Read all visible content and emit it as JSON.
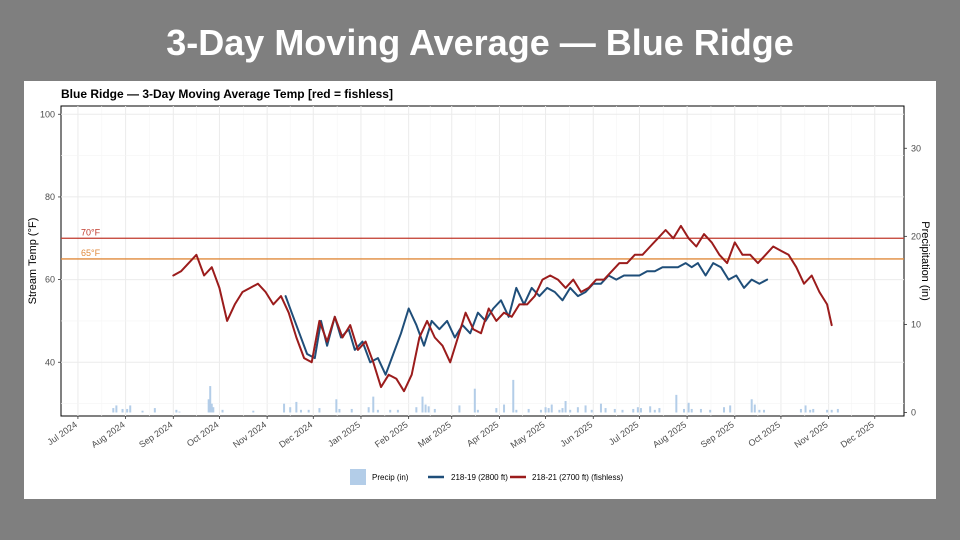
{
  "slide": {
    "title": "3-Day Moving Average —  Blue Ridge"
  },
  "chart_data": {
    "type": "line",
    "title": "Blue Ridge — 3-Day Moving Average Temp   [red = fishless]",
    "ylabel": "Stream Temp (°F)",
    "y2label": "Precipitation (in)",
    "xlim": [
      "2024-06-20",
      "2025-12-20"
    ],
    "ylim": [
      27,
      102
    ],
    "y2lim": [
      -0.4,
      34.8
    ],
    "y_ticks": [
      40,
      60,
      80,
      100
    ],
    "y2_ticks": [
      0,
      10,
      20,
      30
    ],
    "x_ticks": [
      {
        "date": "2024-07-01",
        "label": "Jul 2024"
      },
      {
        "date": "2024-08-01",
        "label": "Aug 2024"
      },
      {
        "date": "2024-09-01",
        "label": "Sep 2024"
      },
      {
        "date": "2024-10-01",
        "label": "Oct 2024"
      },
      {
        "date": "2024-11-01",
        "label": "Nov 2024"
      },
      {
        "date": "2024-12-01",
        "label": "Dec 2024"
      },
      {
        "date": "2025-01-01",
        "label": "Jan 2025"
      },
      {
        "date": "2025-02-01",
        "label": "Feb 2025"
      },
      {
        "date": "2025-03-01",
        "label": "Mar 2025"
      },
      {
        "date": "2025-04-01",
        "label": "Apr 2025"
      },
      {
        "date": "2025-05-01",
        "label": "May 2025"
      },
      {
        "date": "2025-06-01",
        "label": "Jun 2025"
      },
      {
        "date": "2025-07-01",
        "label": "Jul 2025"
      },
      {
        "date": "2025-08-01",
        "label": "Aug 2025"
      },
      {
        "date": "2025-09-01",
        "label": "Sep 2025"
      },
      {
        "date": "2025-10-01",
        "label": "Oct 2025"
      },
      {
        "date": "2025-11-01",
        "label": "Nov 2025"
      },
      {
        "date": "2025-12-01",
        "label": "Dec 2025"
      }
    ],
    "grid": true,
    "legend_position": "bottom",
    "reference_lines": [
      {
        "label": "70°F",
        "value": 70,
        "color": "#c0392b"
      },
      {
        "label": "65°F",
        "value": 65,
        "color": "#e08a3c"
      }
    ],
    "precip": {
      "name": "Precip (in)",
      "color": "#b3cde8",
      "x": [
        "2024-07-24",
        "2024-07-26",
        "2024-07-30",
        "2024-08-02",
        "2024-08-04",
        "2024-08-12",
        "2024-08-20",
        "2024-09-03",
        "2024-09-05",
        "2024-09-24",
        "2024-09-25",
        "2024-09-26",
        "2024-09-27",
        "2024-10-03",
        "2024-10-23",
        "2024-11-12",
        "2024-11-16",
        "2024-11-20",
        "2024-11-23",
        "2024-11-28",
        "2024-12-05",
        "2024-12-16",
        "2024-12-18",
        "2024-12-26",
        "2025-01-06",
        "2025-01-09",
        "2025-01-12",
        "2025-01-20",
        "2025-01-25",
        "2025-02-06",
        "2025-02-10",
        "2025-02-12",
        "2025-02-14",
        "2025-02-18",
        "2025-03-06",
        "2025-03-16",
        "2025-03-18",
        "2025-03-30",
        "2025-04-04",
        "2025-04-10",
        "2025-04-12",
        "2025-04-20",
        "2025-04-28",
        "2025-05-01",
        "2025-05-03",
        "2025-05-05",
        "2025-05-10",
        "2025-05-12",
        "2025-05-14",
        "2025-05-17",
        "2025-05-22",
        "2025-05-27",
        "2025-05-31",
        "2025-06-06",
        "2025-06-09",
        "2025-06-15",
        "2025-06-20",
        "2025-06-27",
        "2025-06-30",
        "2025-07-02",
        "2025-07-08",
        "2025-07-11",
        "2025-07-14",
        "2025-07-25",
        "2025-07-30",
        "2025-08-02",
        "2025-08-04",
        "2025-08-10",
        "2025-08-16",
        "2025-08-25",
        "2025-08-29",
        "2025-09-12",
        "2025-09-14",
        "2025-09-17",
        "2025-09-20",
        "2025-10-14",
        "2025-10-17",
        "2025-10-20",
        "2025-10-22",
        "2025-10-31",
        "2025-11-03",
        "2025-11-07"
      ],
      "values": [
        0.5,
        0.8,
        0.4,
        0.4,
        0.8,
        0.2,
        0.5,
        0.3,
        0.1,
        1.5,
        3.0,
        1.0,
        0.6,
        0.3,
        0.2,
        1.0,
        0.6,
        1.2,
        0.3,
        0.3,
        0.5,
        1.5,
        0.4,
        0.4,
        0.6,
        1.8,
        0.3,
        0.3,
        0.3,
        0.6,
        1.8,
        0.9,
        0.7,
        0.4,
        0.8,
        2.7,
        0.3,
        0.5,
        0.9,
        3.7,
        0.3,
        0.4,
        0.3,
        0.6,
        0.5,
        0.9,
        0.3,
        0.5,
        1.3,
        0.3,
        0.6,
        0.8,
        0.3,
        1.0,
        0.5,
        0.4,
        0.3,
        0.4,
        0.6,
        0.5,
        0.7,
        0.3,
        0.5,
        2.0,
        0.4,
        1.1,
        0.4,
        0.4,
        0.3,
        0.6,
        0.8,
        1.5,
        0.9,
        0.3,
        0.3,
        0.4,
        0.8,
        0.3,
        0.4,
        0.3,
        0.3,
        0.4
      ]
    },
    "series": [
      {
        "name": "218-19 (2800 ft)",
        "color": "#1f4e79",
        "x": [
          "2024-11-13",
          "2024-11-17",
          "2024-11-22",
          "2024-11-27",
          "2024-12-02",
          "2024-12-06",
          "2024-12-10",
          "2024-12-15",
          "2024-12-19",
          "2024-12-24",
          "2024-12-28",
          "2025-01-02",
          "2025-01-07",
          "2025-01-12",
          "2025-01-17",
          "2025-01-22",
          "2025-01-27",
          "2025-02-01",
          "2025-02-06",
          "2025-02-11",
          "2025-02-16",
          "2025-02-21",
          "2025-02-26",
          "2025-03-03",
          "2025-03-08",
          "2025-03-13",
          "2025-03-18",
          "2025-03-23",
          "2025-03-28",
          "2025-04-02",
          "2025-04-07",
          "2025-04-12",
          "2025-04-17",
          "2025-04-22",
          "2025-04-27",
          "2025-05-02",
          "2025-05-07",
          "2025-05-12",
          "2025-05-17",
          "2025-05-22",
          "2025-05-27",
          "2025-06-01",
          "2025-06-06",
          "2025-06-11",
          "2025-06-16",
          "2025-06-21",
          "2025-06-26",
          "2025-07-01",
          "2025-07-06",
          "2025-07-11",
          "2025-07-16",
          "2025-07-21",
          "2025-07-26",
          "2025-07-31",
          "2025-08-04",
          "2025-08-08",
          "2025-08-13",
          "2025-08-18",
          "2025-08-23",
          "2025-08-28",
          "2025-09-02",
          "2025-09-07",
          "2025-09-12",
          "2025-09-17",
          "2025-09-22"
        ],
        "values": [
          56,
          52,
          47,
          42,
          41,
          50,
          44,
          51,
          46,
          48,
          43,
          45,
          40,
          41,
          37,
          42,
          47,
          53,
          49,
          44,
          50,
          48,
          50,
          46,
          49,
          47,
          52,
          50,
          53,
          55,
          51,
          58,
          54,
          58,
          56,
          58,
          57,
          55,
          58,
          56,
          57,
          59,
          59,
          61,
          60,
          61,
          61,
          61,
          62,
          62,
          63,
          63,
          63,
          64,
          63,
          64,
          61,
          64,
          63,
          60,
          61,
          58,
          60,
          59,
          60
        ]
      },
      {
        "name": "218-21 (2700 ft) (fishless)",
        "color": "#9b1c1c",
        "x": [
          "2024-09-01",
          "2024-09-06",
          "2024-09-11",
          "2024-09-16",
          "2024-09-21",
          "2024-09-26",
          "2024-10-01",
          "2024-10-06",
          "2024-10-11",
          "2024-10-16",
          "2024-10-21",
          "2024-10-26",
          "2024-10-31",
          "2024-11-05",
          "2024-11-10",
          "2024-11-15",
          "2024-11-20",
          "2024-11-25",
          "2024-11-30",
          "2024-12-05",
          "2024-12-10",
          "2024-12-15",
          "2024-12-20",
          "2024-12-25",
          "2024-12-30",
          "2025-01-04",
          "2025-01-09",
          "2025-01-14",
          "2025-01-19",
          "2025-01-24",
          "2025-01-29",
          "2025-02-03",
          "2025-02-08",
          "2025-02-13",
          "2025-02-18",
          "2025-02-23",
          "2025-02-28",
          "2025-03-05",
          "2025-03-10",
          "2025-03-15",
          "2025-03-20",
          "2025-03-25",
          "2025-03-30",
          "2025-04-04",
          "2025-04-09",
          "2025-04-14",
          "2025-04-19",
          "2025-04-24",
          "2025-04-29",
          "2025-05-04",
          "2025-05-09",
          "2025-05-14",
          "2025-05-19",
          "2025-05-24",
          "2025-05-29",
          "2025-06-03",
          "2025-06-08",
          "2025-06-13",
          "2025-06-18",
          "2025-06-23",
          "2025-06-28",
          "2025-07-03",
          "2025-07-08",
          "2025-07-13",
          "2025-07-18",
          "2025-07-23",
          "2025-07-28",
          "2025-08-02",
          "2025-08-07",
          "2025-08-12",
          "2025-08-17",
          "2025-08-22",
          "2025-08-27",
          "2025-09-01",
          "2025-09-06",
          "2025-09-11",
          "2025-09-16",
          "2025-09-21",
          "2025-09-26",
          "2025-10-01",
          "2025-10-06",
          "2025-10-11",
          "2025-10-16",
          "2025-10-21",
          "2025-10-26",
          "2025-10-31",
          "2025-11-03"
        ],
        "values": [
          61,
          62,
          64,
          66,
          61,
          63,
          58,
          50,
          54,
          57,
          58,
          59,
          57,
          54,
          56,
          52,
          46,
          41,
          40,
          50,
          45,
          51,
          46,
          49,
          43,
          45,
          40,
          34,
          37,
          36,
          33,
          37,
          46,
          50,
          46,
          44,
          40,
          46,
          52,
          48,
          47,
          53,
          50,
          52,
          51,
          54,
          54,
          56,
          60,
          61,
          60,
          58,
          60,
          57,
          58,
          60,
          60,
          62,
          64,
          64,
          66,
          66,
          68,
          70,
          72,
          70,
          73,
          70,
          68,
          71,
          69,
          66,
          64,
          69,
          66,
          66,
          64,
          66,
          68,
          67,
          66,
          63,
          59,
          61,
          57,
          54,
          49
        ]
      }
    ]
  }
}
